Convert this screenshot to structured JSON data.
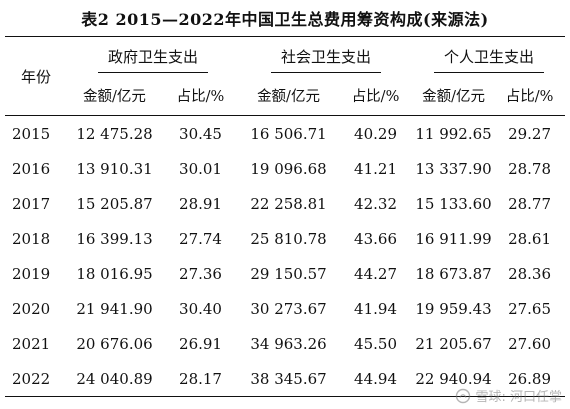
{
  "title": "表2  2015—2022年中国卫生总费用筹资构成(来源法)",
  "table": {
    "year_header": "年份",
    "groups": [
      "政府卫生支出",
      "社会卫生支出",
      "个人卫生支出"
    ],
    "sub_headers": [
      "金额/亿元",
      "占比/%",
      "金额/亿元",
      "占比/%",
      "金额/亿元",
      "占比/%"
    ],
    "rows": [
      {
        "year": "2015",
        "cells": [
          "12 475.28",
          "30.45",
          "16 506.71",
          "40.29",
          "11 992.65",
          "29.27"
        ]
      },
      {
        "year": "2016",
        "cells": [
          "13 910.31",
          "30.01",
          "19 096.68",
          "41.21",
          "13 337.90",
          "28.78"
        ]
      },
      {
        "year": "2017",
        "cells": [
          "15 205.87",
          "28.91",
          "22 258.81",
          "42.32",
          "15 133.60",
          "28.77"
        ]
      },
      {
        "year": "2018",
        "cells": [
          "16 399.13",
          "27.74",
          "25 810.78",
          "43.66",
          "16 911.99",
          "28.61"
        ]
      },
      {
        "year": "2019",
        "cells": [
          "18 016.95",
          "27.36",
          "29 150.57",
          "44.27",
          "18 673.87",
          "28.36"
        ]
      },
      {
        "year": "2020",
        "cells": [
          "21 941.90",
          "30.40",
          "30 273.67",
          "41.94",
          "19 959.43",
          "27.65"
        ]
      },
      {
        "year": "2021",
        "cells": [
          "20 676.06",
          "26.91",
          "34 963.26",
          "45.50",
          "21 205.67",
          "27.60"
        ]
      },
      {
        "year": "2022",
        "cells": [
          "24 040.89",
          "28.17",
          "38 345.67",
          "44.94",
          "22 940.94",
          "26.89"
        ]
      }
    ]
  },
  "watermark": {
    "text": "雪球: 河口任掌",
    "icon": "snowball-logo-icon"
  }
}
